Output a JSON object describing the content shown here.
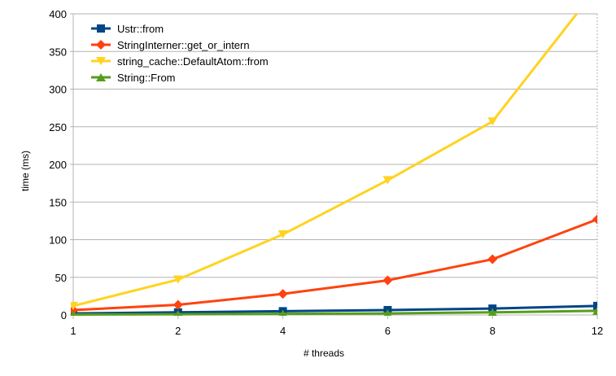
{
  "chart_data": {
    "type": "line",
    "title": "",
    "xlabel": "# threads",
    "ylabel": "time (ms)",
    "categories": [
      "1",
      "2",
      "4",
      "6",
      "8",
      "12"
    ],
    "ylim": [
      0,
      400
    ],
    "yticks": [
      0,
      50,
      100,
      150,
      200,
      250,
      300,
      350,
      400
    ],
    "grid": "horizontal",
    "legend": "top-left",
    "series": [
      {
        "name": "Ustr::from",
        "color": "#004586",
        "marker": "square",
        "values": [
          2,
          3.5,
          5,
          6.5,
          8.5,
          12
        ]
      },
      {
        "name": "StringInterner::get_or_intern",
        "color": "#ff420e",
        "marker": "diamond",
        "values": [
          6.5,
          13.5,
          28,
          46,
          74,
          127
        ]
      },
      {
        "name": "string_cache::DefaultAtom::from",
        "color": "#ffd320",
        "marker": "triangle-down",
        "values": [
          12,
          47,
          107,
          179,
          257,
          435
        ]
      },
      {
        "name": "String::From",
        "color": "#579d1c",
        "marker": "triangle-up",
        "values": [
          0.5,
          1,
          1.5,
          2,
          3.5,
          5.5
        ]
      }
    ]
  }
}
